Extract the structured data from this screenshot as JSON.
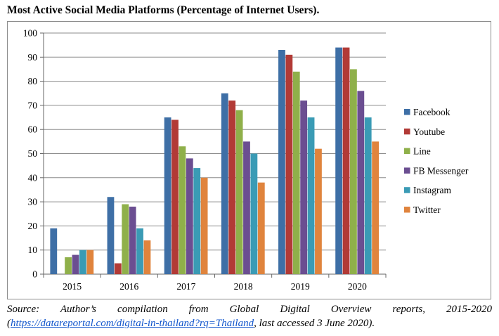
{
  "title": "Most Active Social Media Platforms (Percentage of Internet Users).",
  "source": {
    "line1": "Source: Author’s compilation from Global Digital Overview reports, 2015-2020",
    "link_prefix": "(",
    "link_text": "https://datareportal.com/digital-in-thailand?rq=Thailand",
    "link_suffix": ", last accessed 3 June 2020)."
  },
  "chart_data": {
    "type": "bar",
    "title": "",
    "xlabel": "",
    "ylabel": "",
    "ylim": [
      0,
      100
    ],
    "yticks": [
      0,
      10,
      20,
      30,
      40,
      50,
      60,
      70,
      80,
      90,
      100
    ],
    "grid": "horizontal",
    "legend_position": "right",
    "categories": [
      "2015",
      "2016",
      "2017",
      "2018",
      "2019",
      "2020"
    ],
    "series": [
      {
        "name": "Facebook",
        "color": "#3e6fa6",
        "values": [
          19,
          32,
          65,
          75,
          93,
          94
        ]
      },
      {
        "name": "Youtube",
        "color": "#b23a36",
        "values": [
          null,
          4.5,
          64,
          72,
          91,
          94
        ]
      },
      {
        "name": "Line",
        "color": "#8fb04a",
        "values": [
          7,
          29,
          53,
          68,
          84,
          85
        ]
      },
      {
        "name": "FB Messenger",
        "color": "#6b4e91",
        "values": [
          8,
          28,
          48,
          55,
          72,
          76
        ]
      },
      {
        "name": "Instagram",
        "color": "#3a9bb5",
        "values": [
          10,
          19,
          44,
          50,
          65,
          65
        ]
      },
      {
        "name": "Twitter",
        "color": "#e0843d",
        "values": [
          10,
          14,
          40,
          38,
          52,
          55
        ]
      }
    ]
  }
}
